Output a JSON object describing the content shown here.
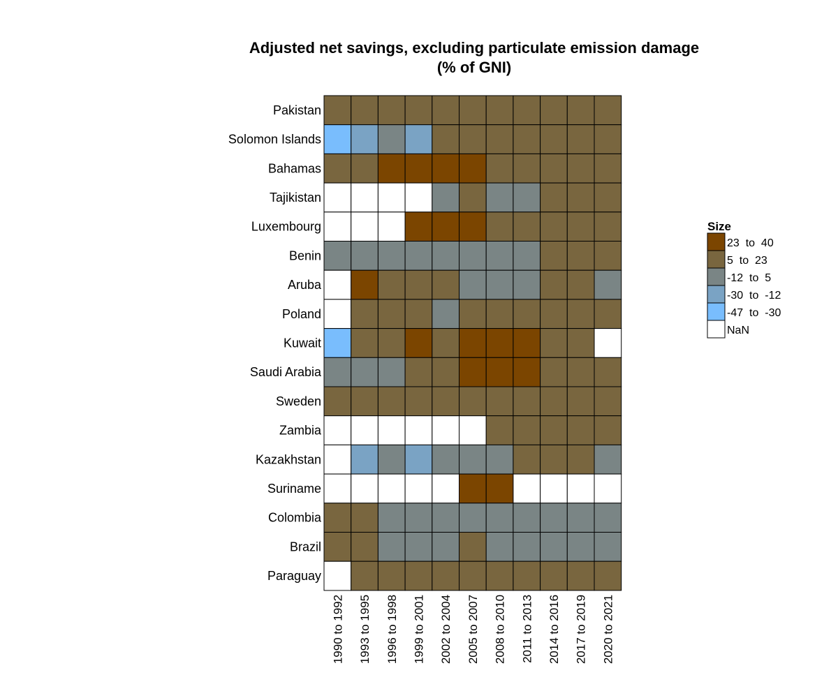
{
  "chart_data": {
    "type": "heatmap",
    "title": "Adjusted net savings, excluding particulate emission damage",
    "subtitle": "(% of GNI)",
    "xlabel": "",
    "ylabel": "",
    "grid": false,
    "legend_position": "right",
    "columns": [
      "1990 to 1992",
      "1993 to 1995",
      "1996 to 1998",
      "1999 to 2001",
      "2002 to 2004",
      "2005 to 2007",
      "2008 to 2010",
      "2011 to 2013",
      "2014 to 2016",
      "2017 to 2019",
      "2020 to 2021"
    ],
    "rows": [
      "Pakistan",
      "Solomon Islands",
      "Bahamas",
      "Tajikistan",
      "Luxembourg",
      "Benin",
      "Aruba",
      "Poland",
      "Kuwait",
      "Saudi Arabia",
      "Sweden",
      "Zambia",
      "Kazakhstan",
      "Suriname",
      "Colombia",
      "Brazil",
      "Paraguay"
    ],
    "legend": {
      "title": "Size",
      "items": [
        {
          "label": "23  to  40",
          "color": "#7b4500"
        },
        {
          "label": "5  to  23",
          "color": "#79663f"
        },
        {
          "label": "-12  to  5",
          "color": "#7a8585"
        },
        {
          "label": "-30  to  -12",
          "color": "#7aa3c4"
        },
        {
          "label": "-47  to  -30",
          "color": "#79bdfd"
        },
        {
          "label": "NaN",
          "color": "#ffffff"
        }
      ]
    },
    "cells": [
      [
        "5  to  23",
        "5  to  23",
        "5  to  23",
        "5  to  23",
        "5  to  23",
        "5  to  23",
        "5  to  23",
        "5  to  23",
        "5  to  23",
        "5  to  23",
        "5  to  23"
      ],
      [
        "-47  to  -30",
        "-30  to  -12",
        "-12  to  5",
        "-30  to  -12",
        "5  to  23",
        "5  to  23",
        "5  to  23",
        "5  to  23",
        "5  to  23",
        "5  to  23",
        "5  to  23"
      ],
      [
        "5  to  23",
        "5  to  23",
        "23  to  40",
        "23  to  40",
        "23  to  40",
        "23  to  40",
        "5  to  23",
        "5  to  23",
        "5  to  23",
        "5  to  23",
        "5  to  23"
      ],
      [
        "NaN",
        "NaN",
        "NaN",
        "NaN",
        "-12  to  5",
        "5  to  23",
        "-12  to  5",
        "-12  to  5",
        "5  to  23",
        "5  to  23",
        "5  to  23"
      ],
      [
        "NaN",
        "NaN",
        "NaN",
        "23  to  40",
        "23  to  40",
        "23  to  40",
        "5  to  23",
        "5  to  23",
        "5  to  23",
        "5  to  23",
        "5  to  23"
      ],
      [
        "-12  to  5",
        "-12  to  5",
        "-12  to  5",
        "-12  to  5",
        "-12  to  5",
        "-12  to  5",
        "-12  to  5",
        "-12  to  5",
        "5  to  23",
        "5  to  23",
        "5  to  23"
      ],
      [
        "NaN",
        "23  to  40",
        "5  to  23",
        "5  to  23",
        "5  to  23",
        "-12  to  5",
        "-12  to  5",
        "-12  to  5",
        "5  to  23",
        "5  to  23",
        "-12  to  5"
      ],
      [
        "NaN",
        "5  to  23",
        "5  to  23",
        "5  to  23",
        "-12  to  5",
        "5  to  23",
        "5  to  23",
        "5  to  23",
        "5  to  23",
        "5  to  23",
        "5  to  23"
      ],
      [
        "-47  to  -30",
        "5  to  23",
        "5  to  23",
        "23  to  40",
        "5  to  23",
        "23  to  40",
        "23  to  40",
        "23  to  40",
        "5  to  23",
        "5  to  23",
        "NaN"
      ],
      [
        "-12  to  5",
        "-12  to  5",
        "-12  to  5",
        "5  to  23",
        "5  to  23",
        "23  to  40",
        "23  to  40",
        "23  to  40",
        "5  to  23",
        "5  to  23",
        "5  to  23"
      ],
      [
        "5  to  23",
        "5  to  23",
        "5  to  23",
        "5  to  23",
        "5  to  23",
        "5  to  23",
        "5  to  23",
        "5  to  23",
        "5  to  23",
        "5  to  23",
        "5  to  23"
      ],
      [
        "NaN",
        "NaN",
        "NaN",
        "NaN",
        "NaN",
        "NaN",
        "5  to  23",
        "5  to  23",
        "5  to  23",
        "5  to  23",
        "5  to  23"
      ],
      [
        "NaN",
        "-30  to  -12",
        "-12  to  5",
        "-30  to  -12",
        "-12  to  5",
        "-12  to  5",
        "-12  to  5",
        "5  to  23",
        "5  to  23",
        "5  to  23",
        "-12  to  5"
      ],
      [
        "NaN",
        "NaN",
        "NaN",
        "NaN",
        "NaN",
        "23  to  40",
        "23  to  40",
        "NaN",
        "NaN",
        "NaN",
        "NaN"
      ],
      [
        "5  to  23",
        "5  to  23",
        "-12  to  5",
        "-12  to  5",
        "-12  to  5",
        "-12  to  5",
        "-12  to  5",
        "-12  to  5",
        "-12  to  5",
        "-12  to  5",
        "-12  to  5"
      ],
      [
        "5  to  23",
        "5  to  23",
        "-12  to  5",
        "-12  to  5",
        "-12  to  5",
        "5  to  23",
        "-12  to  5",
        "-12  to  5",
        "-12  to  5",
        "-12  to  5",
        "-12  to  5"
      ],
      [
        "NaN",
        "5  to  23",
        "5  to  23",
        "5  to  23",
        "5  to  23",
        "5  to  23",
        "5  to  23",
        "5  to  23",
        "5  to  23",
        "5  to  23",
        "5  to  23"
      ]
    ]
  }
}
